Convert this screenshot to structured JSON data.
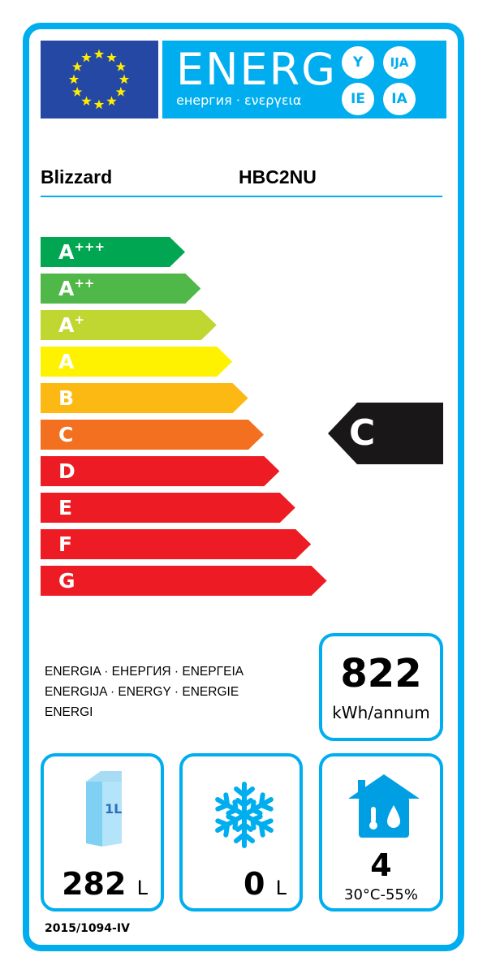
{
  "header": {
    "logo_text": "ENERG",
    "subtitle": "енергия · ενεργεια",
    "suffixes": [
      "Y",
      "IJA",
      "IE",
      "IA"
    ]
  },
  "supplier": "Blizzard",
  "model": "HBC2NU",
  "classes": [
    {
      "main": "A",
      "sup": "+++",
      "color": "#00a651"
    },
    {
      "main": "A",
      "sup": "++",
      "color": "#50b848"
    },
    {
      "main": "A",
      "sup": "+",
      "color": "#bfd730"
    },
    {
      "main": "A",
      "sup": "",
      "color": "#fff200"
    },
    {
      "main": "B",
      "sup": "",
      "color": "#fdb913"
    },
    {
      "main": "C",
      "sup": "",
      "color": "#f37021"
    },
    {
      "main": "D",
      "sup": "",
      "color": "#ed1c24"
    },
    {
      "main": "E",
      "sup": "",
      "color": "#ed1c24"
    },
    {
      "main": "F",
      "sup": "",
      "color": "#ed1c24"
    },
    {
      "main": "G",
      "sup": "",
      "color": "#ed1c24"
    }
  ],
  "rating": "C",
  "energy_words": [
    "ENERGIA · ЕНЕРГИЯ · ΕΝΕΡΓΕΙΑ",
    "ENERGIJA · ENERGY · ENERGIE",
    "ENERGI"
  ],
  "consumption": {
    "value": "822",
    "unit": "kWh/annum"
  },
  "fresh": {
    "value": "282",
    "unit": "L",
    "carton_label": "1L"
  },
  "frozen": {
    "value": "0",
    "unit": "L"
  },
  "climate": {
    "value": "4",
    "range": "30°C-55%"
  },
  "regulation": "2015/1094-IV",
  "colors": {
    "frame": "#00aeef",
    "eu_blue": "#2548a5",
    "star": "#ffed00"
  }
}
